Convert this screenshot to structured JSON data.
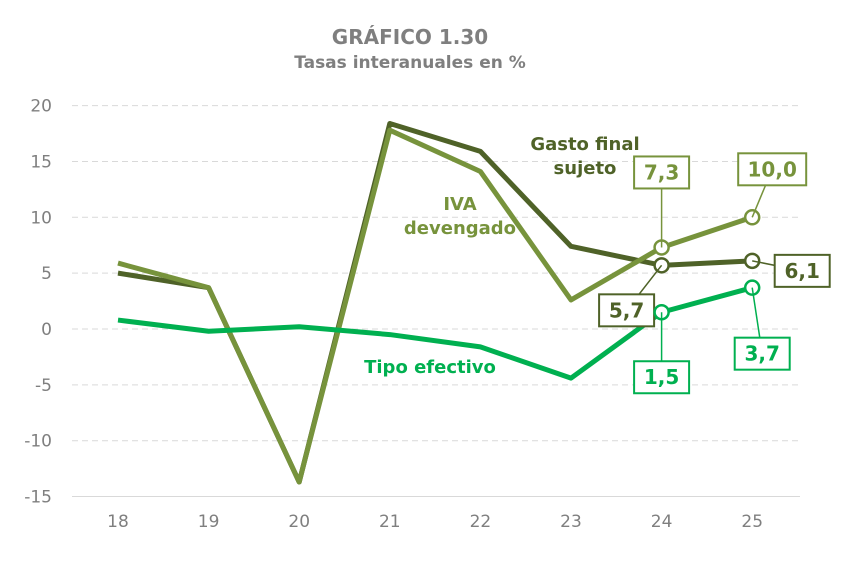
{
  "chart_data": {
    "type": "line",
    "title": "GRÁFICO 1.30",
    "subtitle": "Tasas interanuales en %",
    "xlabel": "",
    "ylabel": "",
    "categories": [
      "18",
      "19",
      "20",
      "21",
      "22",
      "23",
      "24",
      "25"
    ],
    "yticks": [
      "20",
      "15",
      "10",
      "5",
      "0",
      "-5",
      "-10",
      "-15"
    ],
    "ylim": [
      -15,
      20
    ],
    "grid": true,
    "series": [
      {
        "name": "Gasto final sujeto",
        "name_lines": [
          "Gasto final",
          "sujeto"
        ],
        "color": "#4f6228",
        "values": [
          5.0,
          3.7,
          -13.7,
          18.4,
          15.9,
          7.4,
          5.7,
          6.1
        ],
        "data_labels": {
          "24": "5,7",
          "25": "6,1"
        }
      },
      {
        "name": "IVA devengado",
        "name_lines": [
          "IVA",
          "devengado"
        ],
        "color": "#77933c",
        "values": [
          5.9,
          3.7,
          -13.7,
          17.8,
          14.1,
          2.6,
          7.3,
          10.0
        ],
        "data_labels": {
          "24": "7,3",
          "25": "10,0"
        }
      },
      {
        "name": "Tipo efectivo",
        "name_lines": [
          "Tipo efectivo"
        ],
        "color": "#00b050",
        "values": [
          0.8,
          -0.2,
          0.2,
          -0.5,
          -1.6,
          -4.4,
          1.5,
          3.7
        ],
        "data_labels": {
          "24": "1,5",
          "25": "3,7"
        }
      }
    ]
  }
}
